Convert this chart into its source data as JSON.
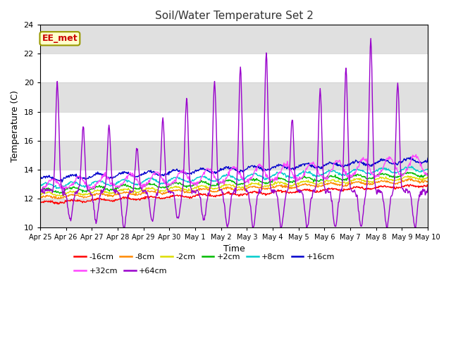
{
  "title": "Soil/Water Temperature Set 2",
  "xlabel": "Time",
  "ylabel": "Temperature (C)",
  "ylim": [
    10,
    24
  ],
  "xlim": [
    0,
    360
  ],
  "annotation_text": "EE_met",
  "annotation_bg": "#ffffcc",
  "annotation_border": "#999900",
  "annotation_text_color": "#cc0000",
  "background_color": "#ffffff",
  "plot_bg_color": "#ffffff",
  "gray_band_color": "#e0e0e0",
  "gray_bands": [
    [
      10,
      12
    ],
    [
      14,
      16
    ],
    [
      18,
      20
    ],
    [
      22,
      24
    ]
  ],
  "series": [
    {
      "label": "-16cm",
      "color": "#ff0000"
    },
    {
      "label": "-8cm",
      "color": "#ff8800"
    },
    {
      "label": "-2cm",
      "color": "#dddd00"
    },
    {
      "label": "+2cm",
      "color": "#00bb00"
    },
    {
      "label": "+8cm",
      "color": "#00cccc"
    },
    {
      "label": "+16cm",
      "color": "#0000cc"
    },
    {
      "label": "+32cm",
      "color": "#ff44ff"
    },
    {
      "label": "+64cm",
      "color": "#9900cc"
    }
  ],
  "xtick_labels": [
    "Apr 25",
    "Apr 26",
    "Apr 27",
    "Apr 28",
    "Apr 29",
    "Apr 30",
    "May 1",
    "May 2",
    "May 3",
    "May 4",
    "May 5",
    "May 6",
    "May 7",
    "May 8",
    "May 9",
    "May 10"
  ],
  "xtick_positions": [
    0,
    24,
    48,
    72,
    96,
    120,
    144,
    168,
    192,
    216,
    240,
    264,
    288,
    312,
    336,
    360
  ],
  "ytick_labels": [
    "10",
    "12",
    "14",
    "16",
    "18",
    "20",
    "22",
    "24"
  ],
  "ytick_positions": [
    10,
    12,
    14,
    16,
    18,
    20,
    22,
    24
  ],
  "n_points": 721,
  "grid_color": "#cccccc",
  "lw": 1.0
}
